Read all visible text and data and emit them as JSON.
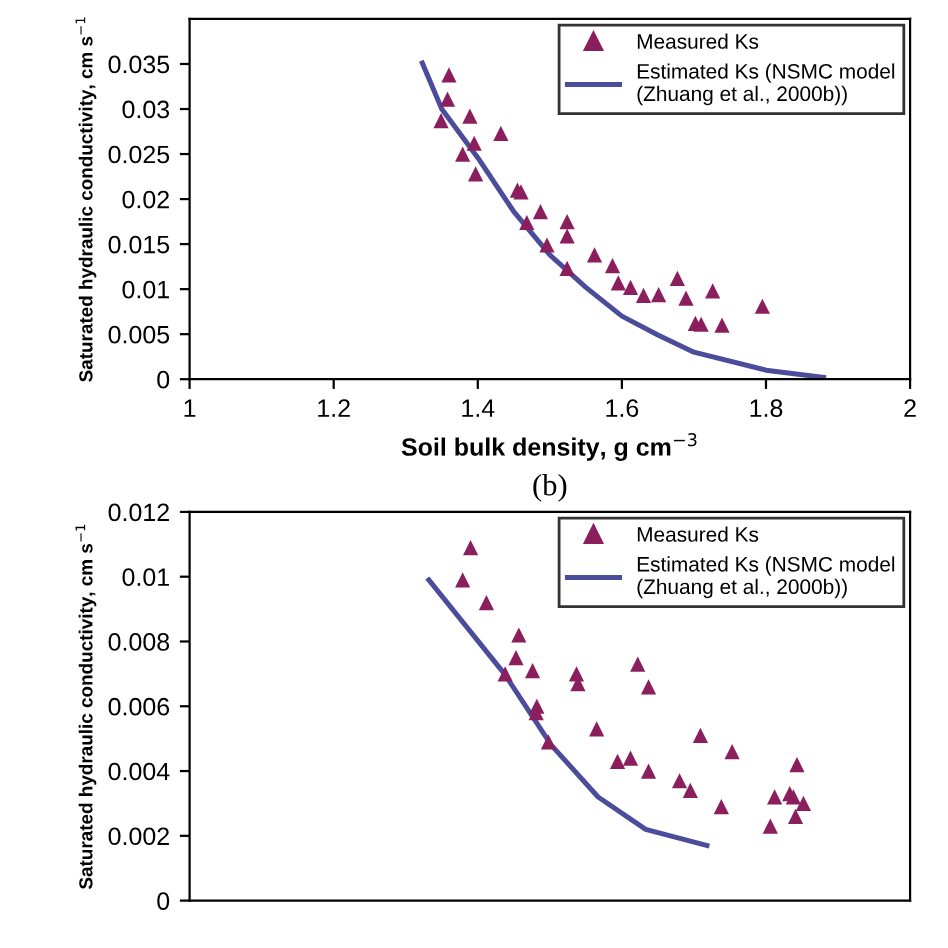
{
  "chart_data": [
    {
      "type": "scatter",
      "xlabel": "Soil bulk density, g cm$^{−3}$",
      "ylabel": "Saturated hydraulic conductivity, cm s$^{−1}$",
      "xlim": [
        1,
        2
      ],
      "xticks": [
        1,
        1.2,
        1.4,
        1.6,
        1.8,
        2
      ],
      "ylim": [
        0,
        0.04
      ],
      "yticks": [
        0,
        0.005,
        0.01,
        0.015,
        0.02,
        0.025,
        0.03,
        0.035
      ],
      "legend": "top right",
      "grid": false,
      "series": [
        {
          "name": "Measured Ks",
          "type": "scatter",
          "marker": "triangle",
          "color": "#8b1f5e",
          "x": [
            1.36,
            1.358,
            1.349,
            1.389,
            1.395,
            1.379,
            1.397,
            1.432,
            1.455,
            1.46,
            1.487,
            1.468,
            1.524,
            1.524,
            1.496,
            1.524,
            1.562,
            1.587,
            1.595,
            1.612,
            1.63,
            1.651,
            1.677,
            1.689,
            1.726,
            1.702,
            1.71,
            1.739,
            1.795
          ],
          "values": [
            0.0338,
            0.0311,
            0.0287,
            0.0292,
            0.0262,
            0.025,
            0.0228,
            0.0273,
            0.021,
            0.0208,
            0.0186,
            0.0174,
            0.0175,
            0.0159,
            0.0149,
            0.0123,
            0.0138,
            0.0126,
            0.0107,
            0.0102,
            0.0093,
            0.0094,
            0.0112,
            0.009,
            0.0098,
            0.0062,
            0.0061,
            0.006,
            0.0081
          ]
        },
        {
          "name": "Estimated Ks (NSMC model\n(Zhuang et al., 2000b))",
          "type": "line",
          "marker": "none",
          "line_style": "solid",
          "color": "#4b4c9c",
          "x": [
            1.323,
            1.35,
            1.4,
            1.45,
            1.5,
            1.55,
            1.6,
            1.65,
            1.7,
            1.8,
            1.88
          ],
          "values": [
            0.0351,
            0.03,
            0.0246,
            0.0186,
            0.0138,
            0.0102,
            0.007,
            0.0049,
            0.003,
            0.001,
            0.0002
          ]
        }
      ]
    },
    {
      "type": "scatter",
      "title": "(b)",
      "ylabel": "Saturated hydraulic conductivity, cm s$^{−1}$",
      "xlim": [
        1,
        2
      ],
      "ylim": [
        0,
        0.012
      ],
      "yticks": [
        0,
        0.002,
        0.004,
        0.006,
        0.008,
        0.01,
        0.012
      ],
      "tick_labels": "y",
      "legend": "top right",
      "grid": false,
      "series": [
        {
          "name": "Measured Ks",
          "type": "scatter",
          "marker": "triangle",
          "color": "#8b1f5e",
          "x": [
            1.39,
            1.379,
            1.412,
            1.457,
            1.453,
            1.438,
            1.476,
            1.482,
            1.481,
            1.498,
            1.537,
            1.539,
            1.622,
            1.637,
            1.565,
            1.594,
            1.612,
            1.637,
            1.709,
            1.68,
            1.695,
            1.753,
            1.738,
            1.806,
            1.812,
            1.833,
            1.838,
            1.843,
            1.841,
            1.852
          ],
          "values": [
            0.0109,
            0.0099,
            0.0092,
            0.0082,
            0.0075,
            0.007,
            0.0071,
            0.006,
            0.0058,
            0.0049,
            0.007,
            0.0067,
            0.0073,
            0.0066,
            0.0053,
            0.0043,
            0.0044,
            0.004,
            0.0051,
            0.0037,
            0.0034,
            0.0046,
            0.0029,
            0.0023,
            0.0032,
            0.0033,
            0.0032,
            0.0042,
            0.0026,
            0.003
          ]
        },
        {
          "name": "Estimated Ks (NSMC model\n(Zhuang et al., 2000b))",
          "type": "line",
          "marker": "none",
          "line_style": "solid",
          "color": "#4b4c9c",
          "x": [
            1.332,
            1.437,
            1.502,
            1.567,
            1.633,
            1.718
          ],
          "values": [
            0.0099,
            0.007,
            0.0048,
            0.0032,
            0.0022,
            0.0017
          ]
        }
      ]
    }
  ]
}
